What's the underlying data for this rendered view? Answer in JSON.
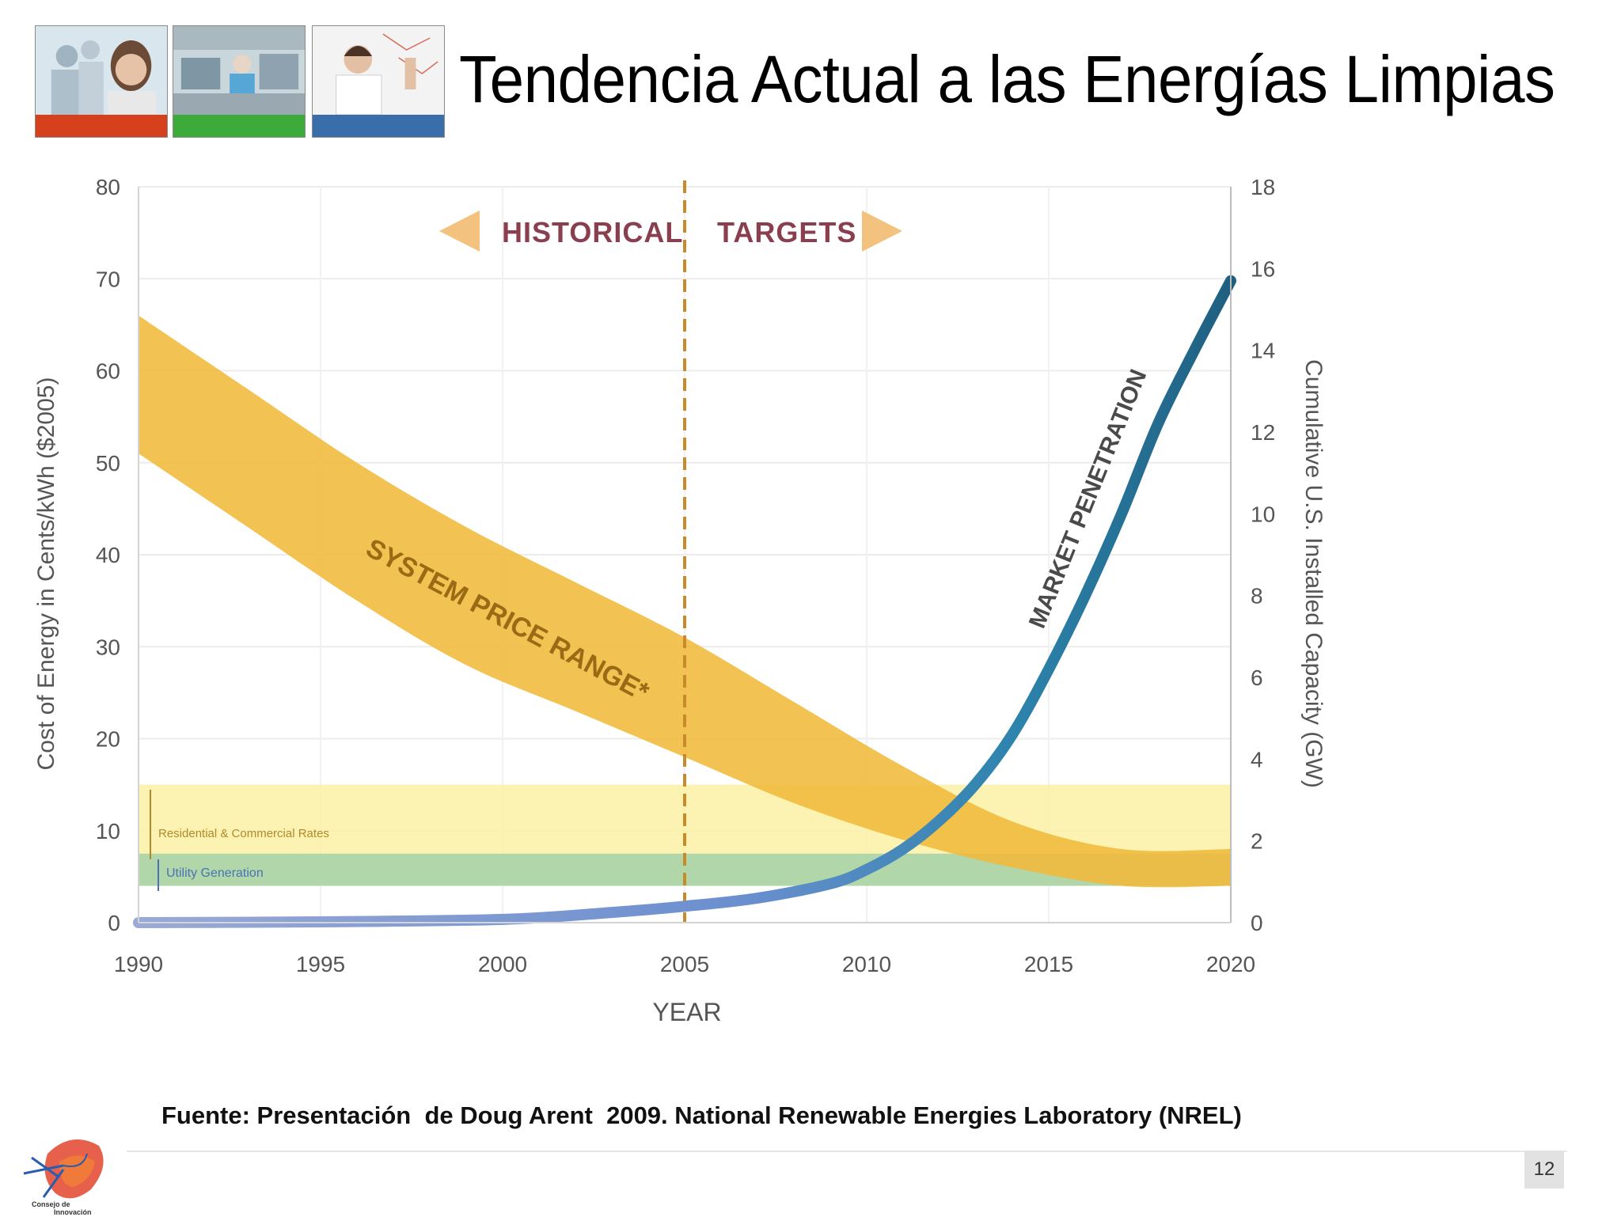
{
  "slide": {
    "title": "Tendencia Actual a las Energías Limpias",
    "source": "Fuente: Presentación  de Doug Arent  2009. National Renewable Energies Laboratory (NREL)",
    "page_number": "12",
    "logo_text_line1": "Consejo de",
    "logo_text_line2": "Innovación",
    "photos": [
      {
        "name": "business-people-photo",
        "bar_color": "#d7401c"
      },
      {
        "name": "factory-workers-photo",
        "bar_color": "#3cab3a"
      },
      {
        "name": "scientist-photo",
        "bar_color": "#3a6eaa"
      }
    ]
  },
  "chart_data": {
    "type": "area",
    "title": "",
    "xlabel": "YEAR",
    "ylabel_left": "Cost of Energy in Cents/kWh ($2005)",
    "ylabel_right": "Cumulative U.S. Installed Capacity (GW)",
    "xlim": [
      1990,
      2020
    ],
    "ylim_left": [
      0,
      80
    ],
    "ylim_right": [
      0,
      18
    ],
    "x_ticks": [
      "1990",
      "1995",
      "2000",
      "2005",
      "2010",
      "2015",
      "2020"
    ],
    "y_left_ticks": [
      "0",
      "10",
      "20",
      "30",
      "40",
      "50",
      "60",
      "70",
      "80"
    ],
    "y_right_ticks": [
      "0",
      "2",
      "4",
      "6",
      "8",
      "10",
      "12",
      "14",
      "16",
      "18"
    ],
    "grid": true,
    "divider_year": 2005,
    "region_labels": {
      "left": "HISTORICAL",
      "right": "TARGETS"
    },
    "series": [
      {
        "name": "SYSTEM PRICE RANGE*",
        "kind": "band",
        "axis": "left",
        "color": "#f0b93a",
        "x": [
          1990,
          1993,
          1996,
          1999,
          2002,
          2005,
          2008,
          2011,
          2014,
          2017,
          2020
        ],
        "upper": [
          66,
          58,
          50,
          43,
          37,
          31,
          24,
          17,
          11,
          8,
          8
        ],
        "lower": [
          51,
          43,
          35,
          28,
          23,
          18,
          13,
          9,
          6,
          4,
          4
        ]
      },
      {
        "name": "MARKET PENETRATION",
        "kind": "line",
        "axis": "right",
        "color": "#2a6f93",
        "x": [
          1990,
          1995,
          2000,
          2003,
          2005,
          2007,
          2009,
          2010,
          2011,
          2012,
          2013,
          2014,
          2015,
          2016,
          2017,
          2018,
          2019,
          2020
        ],
        "values": [
          0,
          0.02,
          0.08,
          0.25,
          0.4,
          0.6,
          0.95,
          1.3,
          1.8,
          2.5,
          3.4,
          4.6,
          6.2,
          8.0,
          10.0,
          12.2,
          14.0,
          15.7
        ]
      }
    ],
    "bands": [
      {
        "name": "Residential & Commercial Rates",
        "y_range": [
          4,
          15
        ],
        "color": "#fbf1a6"
      },
      {
        "name": "Utility Generation",
        "y_range": [
          4,
          7.5
        ],
        "color": "#a9d3a9"
      }
    ]
  }
}
